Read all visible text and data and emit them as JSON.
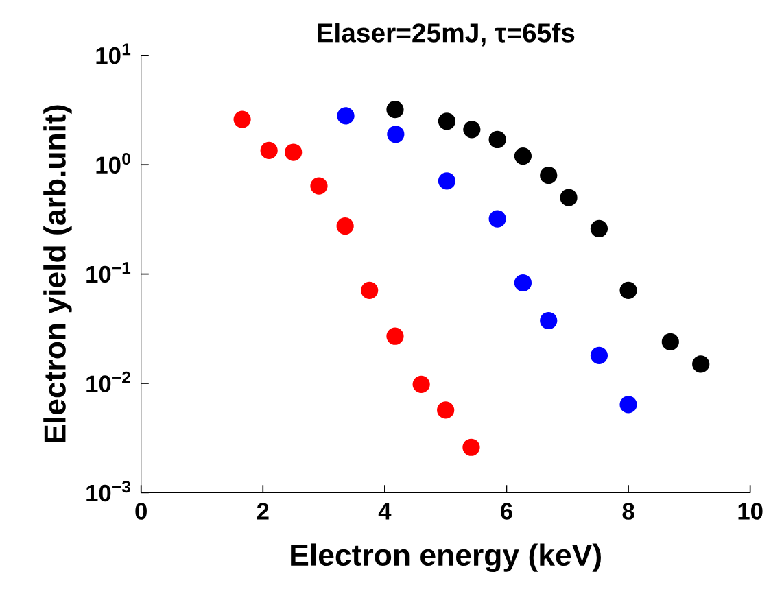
{
  "chart_data": {
    "type": "scatter",
    "title": "Elaser=25mJ, τ=65fs",
    "xlabel": "Electron energy (keV)",
    "ylabel": "Electron yield (arb.unit)",
    "log": "y",
    "xlim": [
      0,
      10
    ],
    "xticks": [
      0,
      2,
      4,
      6,
      8,
      10
    ],
    "ylim": [
      0.001,
      10
    ],
    "yticks": [
      {
        "value": 0.001,
        "label": "10$^{−3}$"
      },
      {
        "value": 0.01,
        "label": "10$^{−2}$"
      },
      {
        "value": 0.1,
        "label": "10$^{−1}$"
      },
      {
        "value": 1,
        "label": "10$^{0}$"
      },
      {
        "value": 10,
        "label": "10$^{1}$"
      }
    ],
    "grid": false,
    "legend": false,
    "marker": "circle",
    "series": [
      {
        "color": "#ff0000",
        "x": [
          1.66,
          2.1,
          2.5,
          2.92,
          3.35,
          3.75,
          4.17,
          4.6,
          5.0,
          5.42
        ],
        "values": [
          2.6,
          1.35,
          1.3,
          0.64,
          0.275,
          0.071,
          0.027,
          0.0098,
          0.0057,
          0.0026
        ]
      },
      {
        "color": "#0000ff",
        "x": [
          3.36,
          4.18,
          5.02,
          5.85,
          6.27,
          6.69,
          7.52,
          8.0
        ],
        "values": [
          2.8,
          1.9,
          0.71,
          0.32,
          0.083,
          0.0375,
          0.018,
          0.0064
        ]
      },
      {
        "color": "#000000",
        "x": [
          4.17,
          5.02,
          5.43,
          5.85,
          6.27,
          6.69,
          7.02,
          7.52,
          8.0,
          8.69,
          9.19
        ],
        "values": [
          3.2,
          2.5,
          2.1,
          1.7,
          1.2,
          0.8,
          0.5,
          0.26,
          0.071,
          0.024,
          0.015
        ]
      }
    ]
  }
}
